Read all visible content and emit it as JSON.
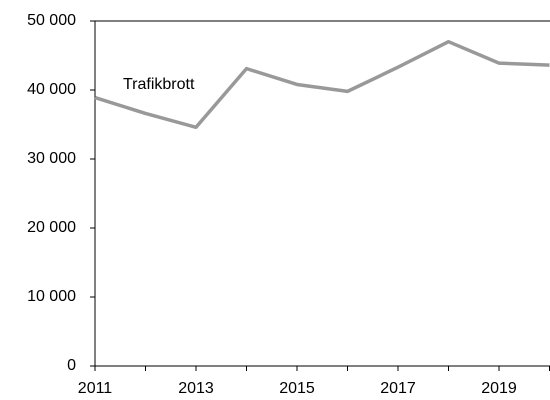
{
  "chart_data": {
    "type": "line",
    "x": [
      2011,
      2012,
      2013,
      2014,
      2015,
      2016,
      2017,
      2018,
      2019,
      2020
    ],
    "series": [
      {
        "name": "Trafikbrott",
        "color": "#999999",
        "values": [
          38900,
          36600,
          34600,
          43100,
          40800,
          39800,
          43300,
          47000,
          43900,
          43600
        ]
      }
    ],
    "xlim": [
      2011,
      2020
    ],
    "xticks": [
      2011,
      2013,
      2015,
      2017,
      2019
    ],
    "ylim": [
      0,
      50000
    ],
    "yticks": [
      0,
      {
        "value": 10000,
        "label": "10 000"
      },
      {
        "value": 20000,
        "label": "20 000"
      },
      {
        "value": 30000,
        "label": "30 000"
      },
      {
        "value": 40000,
        "label": "40 000"
      },
      {
        "value": 50000,
        "label": "50 000"
      }
    ],
    "grid": false
  }
}
